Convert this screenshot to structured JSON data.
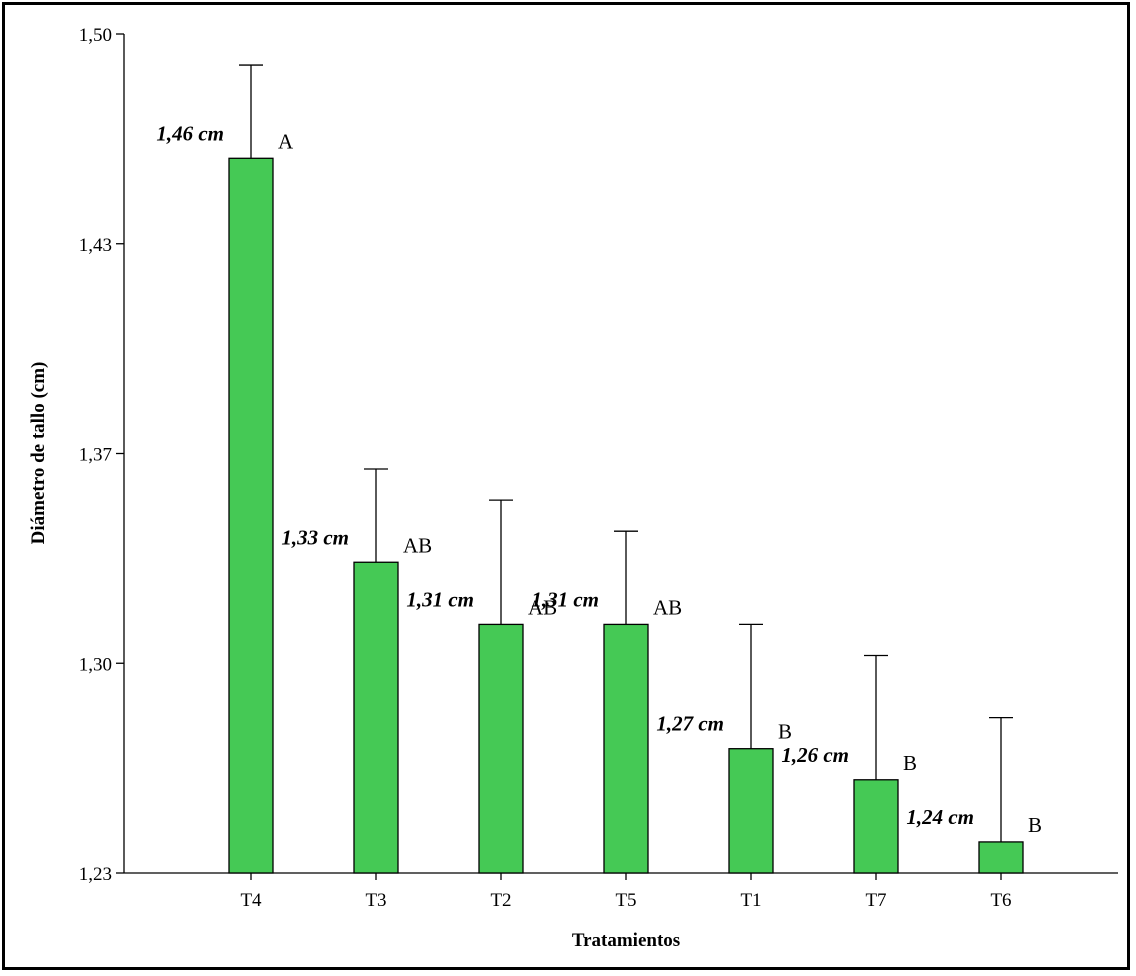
{
  "chart_data": {
    "type": "bar",
    "title": "",
    "xlabel": "Tratamientos",
    "ylabel": "Diámetro de tallo (cm)",
    "ylim": [
      1.23,
      1.5
    ],
    "yticks": [
      "1,23",
      "1,30",
      "1,37",
      "1,43",
      "1,50"
    ],
    "categories": [
      "T4",
      "T3",
      "T2",
      "T5",
      "T1",
      "T7",
      "T6"
    ],
    "values": [
      1.46,
      1.33,
      1.31,
      1.31,
      1.27,
      1.26,
      1.24
    ],
    "error_upper": [
      1.49,
      1.36,
      1.35,
      1.34,
      1.31,
      1.3,
      1.28
    ],
    "value_labels": [
      "1,46 cm",
      "1,33 cm",
      "1,31 cm",
      "1,31 cm",
      "1,27 cm",
      "1,26 cm",
      "1,24 cm"
    ],
    "group_letters": [
      "A",
      "AB",
      "AB",
      "AB",
      "B",
      "B",
      "B"
    ],
    "bar_color": "#45c955",
    "grid": false,
    "legend": "none"
  }
}
